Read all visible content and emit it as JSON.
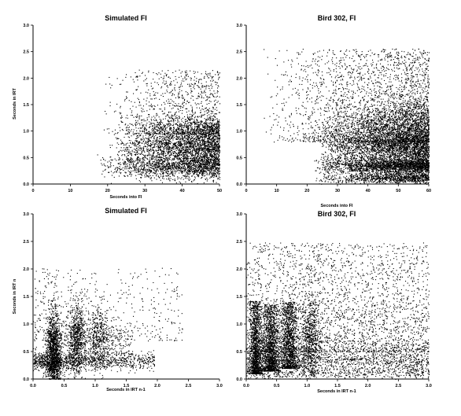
{
  "figure": {
    "background": "#ffffff",
    "ink": "#000000"
  },
  "chart_data": [
    {
      "type": "scatter",
      "title": "Simulated FI",
      "xlabel": "Seconds into FI",
      "ylabel": "Seconds in IRT",
      "xlim": [
        0,
        50
      ],
      "ylim": [
        0,
        3.0
      ],
      "xticks": [
        "0",
        "10",
        "20",
        "30",
        "40",
        "50"
      ],
      "yticks": [
        "0.0",
        "0.5",
        "1.0",
        "1.5",
        "2.0",
        "2.5",
        "3.0"
      ],
      "series": [
        {
          "bands": [
            {
              "x": [
                16,
                50
              ],
              "y": [
                0.35,
                0.12
              ],
              "weight": 0.34
            },
            {
              "x": [
                20,
                50
              ],
              "y": [
                0.7,
                0.14
              ],
              "weight": 0.3
            },
            {
              "x": [
                22,
                50
              ],
              "y": [
                1.0,
                0.14
              ],
              "weight": 0.17
            },
            {
              "x": [
                18,
                50
              ],
              "y": [
                1.5,
                0.55
              ],
              "weight": 0.19
            }
          ],
          "n_points": 5200,
          "x_density": "rising"
        }
      ]
    },
    {
      "type": "scatter",
      "title": "Bird 302, FI",
      "xlabel": "Seconds into FI",
      "ylabel": "",
      "xlim": [
        0,
        60
      ],
      "ylim": [
        0,
        3.0
      ],
      "xticks": [
        "0",
        "10",
        "20",
        "30",
        "40",
        "50",
        "60"
      ],
      "yticks": [
        "0.0",
        "0.5",
        "1.0",
        "1.5",
        "2.0",
        "2.5",
        "3.0"
      ],
      "series": [
        {
          "bands": [
            {
              "x": [
                22,
                60
              ],
              "y": [
                0.35,
                0.08
              ],
              "weight": 0.24
            },
            {
              "x": [
                22,
                60
              ],
              "y": [
                0.12,
                0.05
              ],
              "weight": 0.1
            },
            {
              "x": [
                22,
                60
              ],
              "y": [
                0.7,
                0.15
              ],
              "weight": 0.22
            },
            {
              "x": [
                24,
                60
              ],
              "y": [
                1.05,
                0.25
              ],
              "weight": 0.18
            },
            {
              "x": [
                5,
                60
              ],
              "y": [
                1.6,
                0.8
              ],
              "weight": 0.26
            }
          ],
          "n_points": 9500,
          "x_density": "rising"
        }
      ]
    },
    {
      "type": "scatter",
      "title": "Simulated FI",
      "xlabel": "Seconds in IRT n-1",
      "ylabel": "Seconds in IRT n",
      "xlim": [
        0,
        3.0
      ],
      "ylim": [
        0,
        3.0
      ],
      "xticks": [
        "0.0",
        "0.5",
        "1.0",
        "1.5",
        "2.0",
        "2.5",
        "3.0"
      ],
      "yticks": [
        "0.0",
        "0.5",
        "1.0",
        "1.5",
        "2.0",
        "2.5",
        "3.0"
      ],
      "series": [
        {
          "bands": [
            {
              "x": [
                0.32,
                0.06
              ],
              "y": [
                0.35,
                0.45
              ],
              "weight": 0.34
            },
            {
              "x": [
                0.75,
                1.2
              ],
              "y": [
                0.33,
                0.08
              ],
              "weight": 0.22
            },
            {
              "x": [
                0.7,
                0.07
              ],
              "y": [
                0.75,
                0.35
              ],
              "weight": 0.16
            },
            {
              "x": [
                1.05,
                0.08
              ],
              "y": [
                0.75,
                0.3
              ],
              "weight": 0.08
            },
            {
              "x": [
                0.9,
                0.7
              ],
              "y": [
                0.7,
                0.2
              ],
              "weight": 0.1
            },
            {
              "x": [
                1.0,
                1.4
              ],
              "y": [
                1.3,
                0.6
              ],
              "weight": 0.1
            }
          ],
          "n_points": 4800,
          "x_density": "gaussian"
        }
      ]
    },
    {
      "type": "scatter",
      "title": "Bird 302, FI",
      "xlabel": "Seconds in IRT n-1",
      "ylabel": "",
      "xlim": [
        0,
        3.0
      ],
      "ylim": [
        0,
        3.0
      ],
      "xticks": [
        "0.0",
        "0.5",
        "1.0",
        "1.5",
        "2.0",
        "2.5",
        "3.0"
      ],
      "yticks": [
        "0.0",
        "0.5",
        "1.0",
        "1.5",
        "2.0",
        "2.5",
        "3.0"
      ],
      "series": [
        {
          "bands": [
            {
              "x": [
                0.15,
                0.05
              ],
              "y": [
                0.7,
                0.6
              ],
              "weight": 0.14
            },
            {
              "x": [
                0.4,
                0.07
              ],
              "y": [
                0.7,
                0.55
              ],
              "weight": 0.16
            },
            {
              "x": [
                0.7,
                0.07
              ],
              "y": [
                0.75,
                0.55
              ],
              "weight": 0.14
            },
            {
              "x": [
                1.05,
                0.08
              ],
              "y": [
                0.7,
                0.4
              ],
              "weight": 0.08
            },
            {
              "x": [
                1.5,
                1.5
              ],
              "y": [
                0.35,
                0.1
              ],
              "weight": 0.12
            },
            {
              "x": [
                1.5,
                1.5
              ],
              "y": [
                0.12,
                0.06
              ],
              "weight": 0.06
            },
            {
              "x": [
                1.5,
                1.5
              ],
              "y": [
                1.4,
                0.9
              ],
              "weight": 0.3
            }
          ],
          "n_points": 9000,
          "x_density": "gaussian"
        }
      ]
    }
  ]
}
